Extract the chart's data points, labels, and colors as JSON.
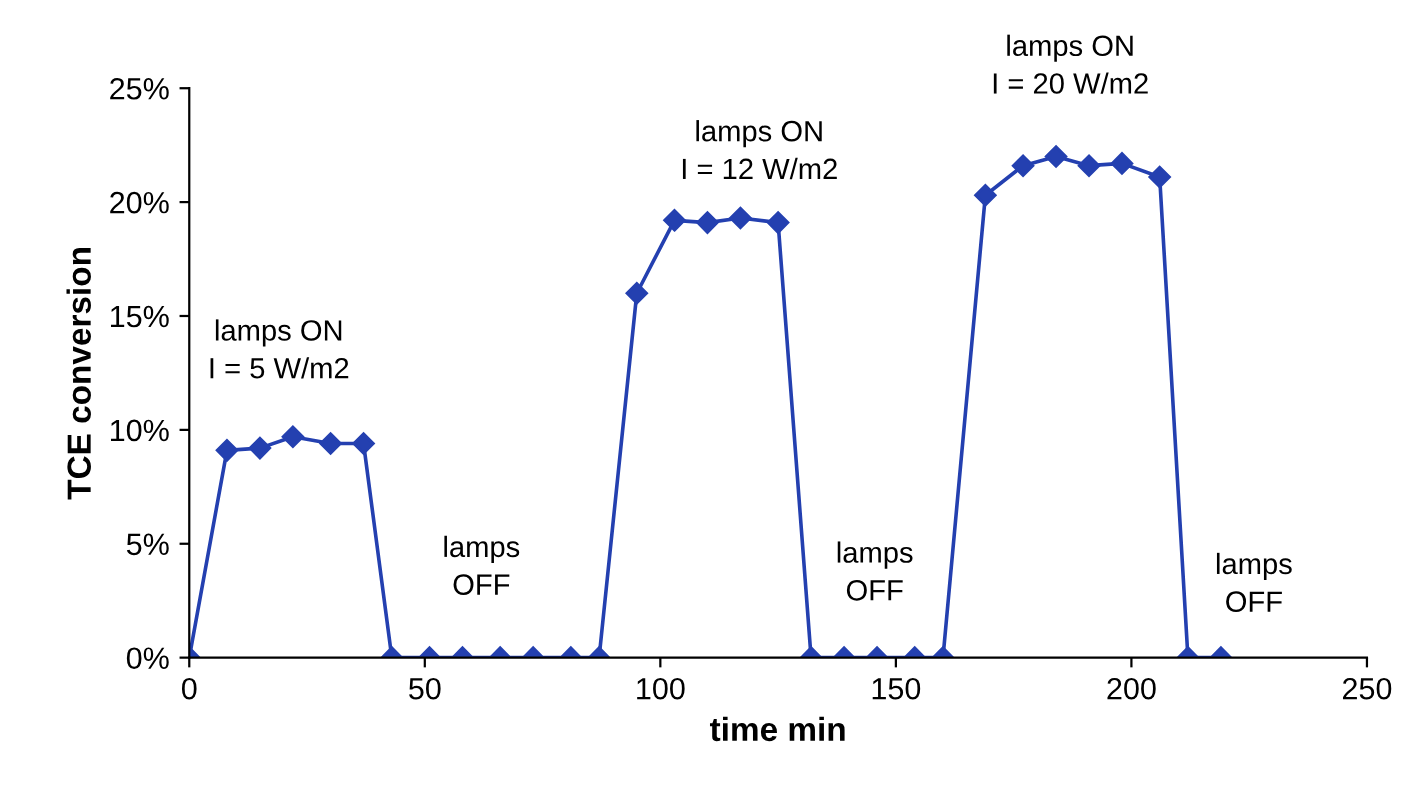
{
  "chart_data": {
    "type": "line",
    "xlabel": "time min",
    "ylabel": "TCE conversion",
    "x": [
      0,
      8,
      15,
      22,
      30,
      37,
      43,
      51,
      58,
      66,
      73,
      81,
      87,
      95,
      103,
      110,
      117,
      125,
      132,
      139,
      146,
      154,
      160,
      169,
      177,
      184,
      191,
      198,
      206,
      212,
      219
    ],
    "series": [
      {
        "color": "#2440b0",
        "values": [
          0,
          9.1,
          9.2,
          9.7,
          9.4,
          9.4,
          0,
          0,
          0,
          0,
          0,
          0,
          0,
          16.0,
          19.2,
          19.1,
          19.3,
          19.1,
          0,
          0,
          0,
          0,
          0,
          20.3,
          21.6,
          22.0,
          21.6,
          21.7,
          21.1,
          0,
          0
        ]
      }
    ],
    "marker": "diamond",
    "line_style": "solid",
    "grid": false,
    "xlim": [
      0,
      250
    ],
    "xticks": [
      0,
      50,
      100,
      150,
      200,
      250
    ],
    "ylim": [
      0,
      25
    ],
    "yticks": [
      {
        "value": 0,
        "label": "0%"
      },
      {
        "value": 5,
        "label": "5%"
      },
      {
        "value": 10,
        "label": "10%"
      },
      {
        "value": 15,
        "label": "15%"
      },
      {
        "value": 20,
        "label": "20%"
      },
      {
        "value": 25,
        "label": "25%"
      }
    ],
    "annotations": [
      "lamps ON\nI = 5 W/m2",
      "lamps\nOFF",
      "lamps ON\nI = 12 W/m2",
      "lamps\nOFF",
      "lamps ON\nI = 20 W/m2",
      "lamps\nOFF"
    ]
  }
}
